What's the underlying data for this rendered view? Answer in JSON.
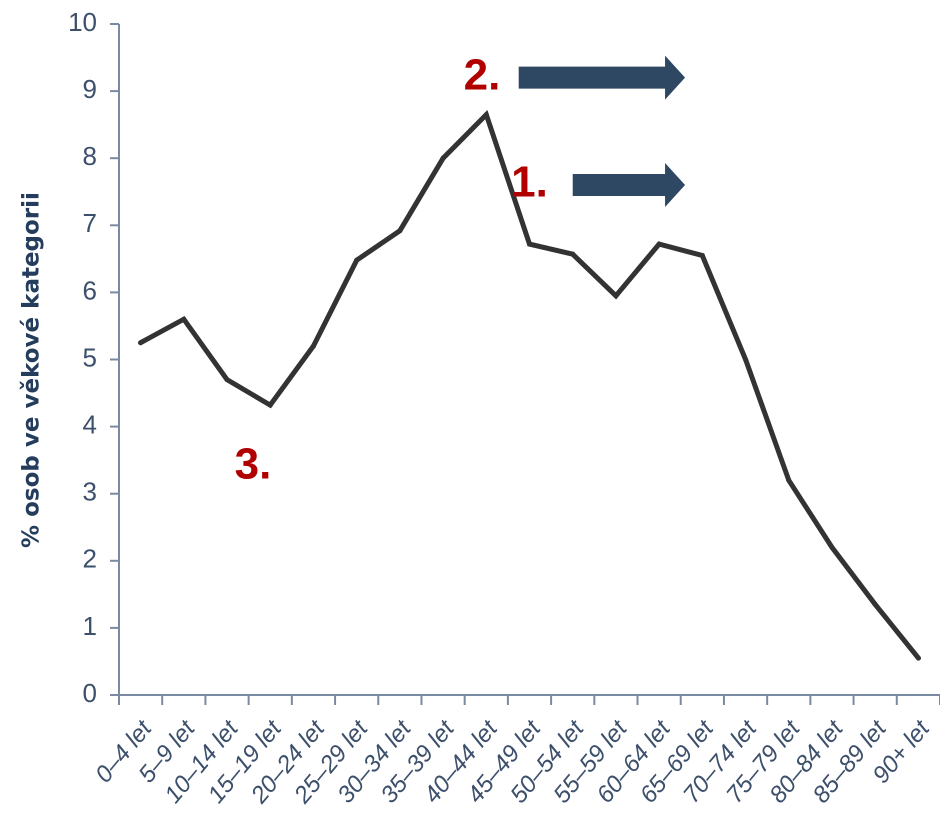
{
  "chart_data": {
    "type": "line",
    "title": "",
    "xlabel": "",
    "ylabel": "% osob ve věkové kategorii",
    "ylim": [
      0,
      10
    ],
    "yticks": [
      0,
      1,
      2,
      3,
      4,
      5,
      6,
      7,
      8,
      9,
      10
    ],
    "grid": false,
    "categories": [
      "0–4 let",
      "5–9 let",
      "10–14 let",
      "15–19 let",
      "20–24 let",
      "25–29 let",
      "30–34 let",
      "35–39 let",
      "40–44 let",
      "45–49 let",
      "50–54 let",
      "55–59 let",
      "60–64 let",
      "65–69 let",
      "70–74 let",
      "75–79 let",
      "80–84 let",
      "85–89 let",
      "90+ let"
    ],
    "series": [
      {
        "values": [
          5.25,
          5.6,
          4.7,
          4.32,
          5.2,
          6.48,
          6.92,
          8.0,
          8.65,
          6.72,
          6.57,
          5.95,
          6.72,
          6.55,
          5.0,
          3.2,
          2.2,
          1.35,
          0.55
        ],
        "color": "#333333"
      }
    ],
    "annotations": [
      {
        "text": "1.",
        "category_index": 9.0,
        "y": 7.6,
        "color": "#b00000",
        "arrow": {
          "from_index": 10.0,
          "to_index": 12.6,
          "y": 7.6,
          "color": "#2e4762"
        }
      },
      {
        "text": "2.",
        "category_index": 7.9,
        "y": 9.2,
        "color": "#b00000",
        "arrow": {
          "from_index": 8.75,
          "to_index": 12.6,
          "y": 9.2,
          "color": "#2e4762"
        }
      },
      {
        "text": "3.",
        "category_index": 2.6,
        "y": 3.4,
        "color": "#b00000"
      }
    ],
    "axis_color": "#7b8aa3"
  }
}
